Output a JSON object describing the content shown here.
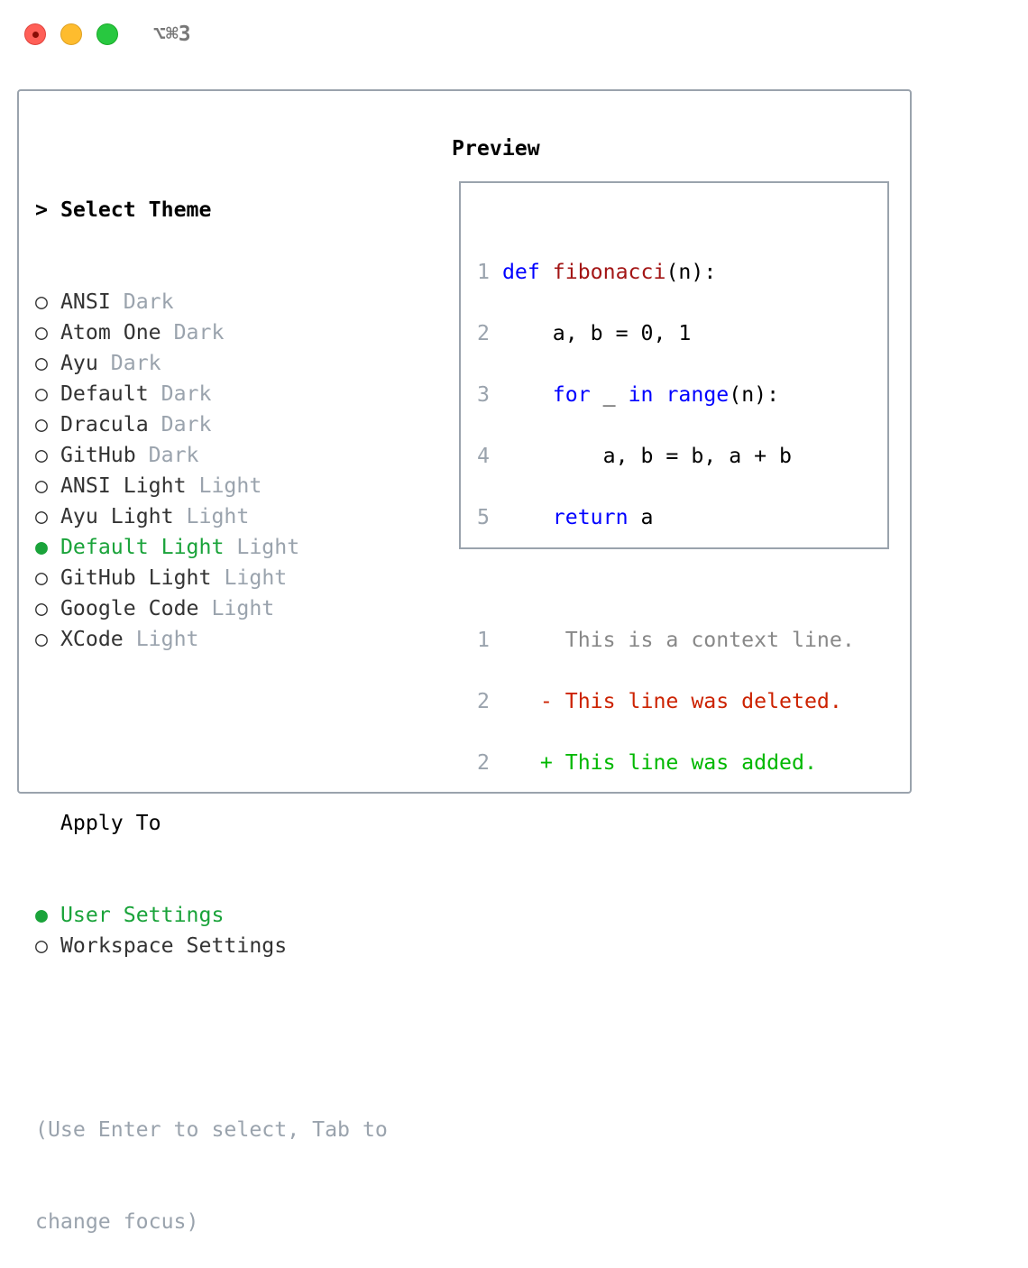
{
  "window": {
    "title": "⌥⌘3"
  },
  "theme_section": {
    "prompt": ">",
    "title": "Select Theme",
    "items": [
      {
        "name": "ANSI",
        "variant": "Dark",
        "selected": false
      },
      {
        "name": "Atom One",
        "variant": "Dark",
        "selected": false
      },
      {
        "name": "Ayu",
        "variant": "Dark",
        "selected": false
      },
      {
        "name": "Default",
        "variant": "Dark",
        "selected": false
      },
      {
        "name": "Dracula",
        "variant": "Dark",
        "selected": false
      },
      {
        "name": "GitHub",
        "variant": "Dark",
        "selected": false
      },
      {
        "name": "ANSI Light",
        "variant": "Light",
        "selected": false
      },
      {
        "name": "Ayu Light",
        "variant": "Light",
        "selected": false
      },
      {
        "name": "Default Light",
        "variant": "Light",
        "selected": true
      },
      {
        "name": "GitHub Light",
        "variant": "Light",
        "selected": false
      },
      {
        "name": "Google Code",
        "variant": "Light",
        "selected": false
      },
      {
        "name": "XCode",
        "variant": "Light",
        "selected": false
      }
    ]
  },
  "apply_section": {
    "title": "Apply To",
    "items": [
      {
        "label": "User Settings",
        "selected": true
      },
      {
        "label": "Workspace Settings",
        "selected": false
      }
    ]
  },
  "help": {
    "line1": "(Use Enter to select, Tab to",
    "line2": "change focus)"
  },
  "preview": {
    "title": "Preview",
    "code": {
      "n1": "1",
      "n2": "2",
      "n3": "3",
      "n4": "4",
      "n5": "5",
      "def": "def",
      "fn": "fibonacci",
      "l1rest": "(n):",
      "l2": "    a, b = 0, 1",
      "for": "for",
      "us": " _ ",
      "in": "in",
      "range": "range",
      "l3rest": "(n):",
      "l4": "        a, b = b, a + b",
      "ret": "return",
      "l5rest": " a"
    },
    "diff": {
      "c_num": "1",
      "c_text": "This is a context line.",
      "d_num": "2",
      "d_text": "- This line was deleted.",
      "a_num": "2",
      "a_text": "+ This line was added."
    }
  },
  "colors": {
    "selected": "#1aa33a",
    "keyword": "#0000ff",
    "function": "#a31515",
    "deleted": "#cc2200",
    "added": "#00b800"
  },
  "icons": {
    "unselected": "○",
    "selected": "●"
  }
}
